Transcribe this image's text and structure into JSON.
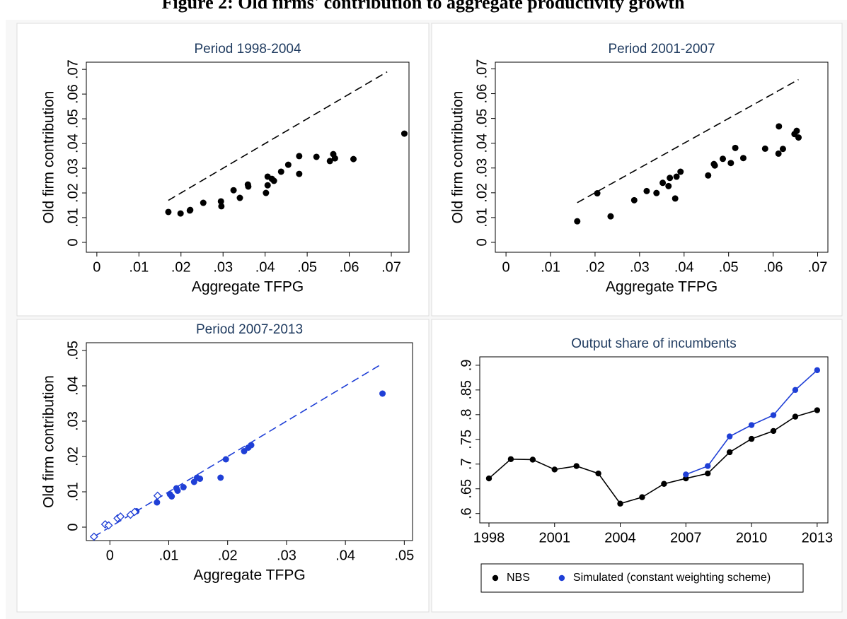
{
  "title": "Figure 2: Old firms' contribution to aggregate productivity growth",
  "chart_data": [
    {
      "type": "scatter",
      "title": "Period 1998-2004",
      "x_label": "Aggregate TFPG",
      "y_label": "Old firm contribution",
      "xlim": [
        -0.0025,
        0.0742
      ],
      "ylim": [
        -0.004,
        0.0729
      ],
      "xticks": [
        0,
        {
          "value": 0.01,
          "label": ".01"
        },
        {
          "value": 0.02,
          "label": ".02"
        },
        {
          "value": 0.03,
          "label": ".03"
        },
        {
          "value": 0.04,
          "label": ".04"
        },
        {
          "value": 0.05,
          "label": ".05"
        },
        {
          "value": 0.06,
          "label": ".06"
        },
        {
          "value": 0.07,
          "label": ".07"
        }
      ],
      "yticks": [
        0,
        {
          "value": 0.01,
          "label": ".01"
        },
        {
          "value": 0.02,
          "label": ".02"
        },
        {
          "value": 0.03,
          "label": ".03"
        },
        {
          "value": 0.04,
          "label": ".04"
        },
        {
          "value": 0.05,
          "label": ".05"
        },
        {
          "value": 0.06,
          "label": ".06"
        },
        {
          "value": 0.07,
          "label": ".07"
        }
      ],
      "reference_line": {
        "color": "#000000",
        "x": [
          0.017,
          0.069
        ],
        "values": [
          0.017,
          0.069
        ]
      },
      "series": [
        {
          "color": "#000000",
          "marker": "circle",
          "x": [
            0.017,
            0.0199,
            0.0221,
            0.0222,
            0.0253,
            0.0295,
            0.0296,
            0.0325,
            0.034,
            0.0359,
            0.036,
            0.0402,
            0.0406,
            0.0406,
            0.0416,
            0.0421,
            0.0438,
            0.0455,
            0.0481,
            0.0481,
            0.0522,
            0.0554,
            0.0562,
            0.0566,
            0.061,
            0.0731
          ],
          "values": [
            0.0123,
            0.0117,
            0.0129,
            0.0131,
            0.016,
            0.0166,
            0.0146,
            0.0211,
            0.018,
            0.0234,
            0.0226,
            0.02,
            0.0266,
            0.0231,
            0.0257,
            0.0249,
            0.0286,
            0.0314,
            0.0349,
            0.0277,
            0.0346,
            0.0329,
            0.0357,
            0.034,
            0.0337,
            0.044
          ]
        }
      ]
    },
    {
      "type": "scatter",
      "title": "Period 2001-2007",
      "x_label": "Aggregate TFPG",
      "y_label": "Old firm contribution",
      "xlim": [
        -0.0024,
        0.0723
      ],
      "ylim": [
        -0.004,
        0.0727
      ],
      "xticks": [
        0,
        {
          "value": 0.01,
          "label": ".01"
        },
        {
          "value": 0.02,
          "label": ".02"
        },
        {
          "value": 0.03,
          "label": ".03"
        },
        {
          "value": 0.04,
          "label": ".04"
        },
        {
          "value": 0.05,
          "label": ".05"
        },
        {
          "value": 0.06,
          "label": ".06"
        },
        {
          "value": 0.07,
          "label": ".07"
        }
      ],
      "yticks": [
        0,
        {
          "value": 0.01,
          "label": ".01"
        },
        {
          "value": 0.02,
          "label": ".02"
        },
        {
          "value": 0.03,
          "label": ".03"
        },
        {
          "value": 0.04,
          "label": ".04"
        },
        {
          "value": 0.05,
          "label": ".05"
        },
        {
          "value": 0.06,
          "label": ".06"
        },
        {
          "value": 0.07,
          "label": ".07"
        }
      ],
      "reference_line": {
        "color": "#000000",
        "x": [
          0.016,
          0.0657
        ],
        "values": [
          0.016,
          0.0657
        ]
      },
      "series": [
        {
          "color": "#000000",
          "marker": "circle",
          "x": [
            0.016,
            0.0205,
            0.0235,
            0.0288,
            0.0316,
            0.0338,
            0.0352,
            0.0365,
            0.0368,
            0.038,
            0.0383,
            0.0392,
            0.0454,
            0.0467,
            0.0469,
            0.0487,
            0.0505,
            0.0515,
            0.0533,
            0.0582,
            0.0612,
            0.0613,
            0.0622,
            0.0648,
            0.0653,
            0.0657
          ],
          "values": [
            0.0085,
            0.0198,
            0.0105,
            0.017,
            0.0207,
            0.0199,
            0.024,
            0.0227,
            0.026,
            0.0177,
            0.0265,
            0.0285,
            0.027,
            0.0316,
            0.031,
            0.0337,
            0.032,
            0.0381,
            0.034,
            0.0378,
            0.0358,
            0.0468,
            0.0377,
            0.0437,
            0.045,
            0.0423
          ]
        }
      ]
    },
    {
      "type": "scatter",
      "title": "Period 2007-2013",
      "x_label": "Aggregate TFPG",
      "y_label": "Old firm contribution",
      "xlim": [
        -0.004,
        0.0514
      ],
      "ylim": [
        -0.0038,
        0.0522
      ],
      "xticks": [
        0,
        {
          "value": 0.01,
          "label": ".01"
        },
        {
          "value": 0.02,
          "label": ".02"
        },
        {
          "value": 0.03,
          "label": ".03"
        },
        {
          "value": 0.04,
          "label": ".04"
        },
        {
          "value": 0.05,
          "label": ".05"
        }
      ],
      "yticks": [
        0,
        {
          "value": 0.01,
          "label": ".01"
        },
        {
          "value": 0.02,
          "label": ".02"
        },
        {
          "value": 0.03,
          "label": ".03"
        },
        {
          "value": 0.04,
          "label": ".04"
        },
        {
          "value": 0.05,
          "label": ".05"
        }
      ],
      "reference_line": {
        "color": "#1f3fd6",
        "x": [
          -0.0027,
          0.0463
        ],
        "values": [
          -0.0027,
          0.0463
        ]
      },
      "series": [
        {
          "color": "#1f3fd6",
          "marker": "circle",
          "x": [
            0.0045,
            0.008,
            0.0102,
            0.0105,
            0.0113,
            0.0115,
            0.0125,
            0.0143,
            0.0148,
            0.0153,
            0.0188,
            0.0197,
            0.0228,
            0.0235,
            0.024,
            0.0463
          ],
          "values": [
            0.0045,
            0.007,
            0.0093,
            0.0087,
            0.011,
            0.0103,
            0.0113,
            0.0128,
            0.014,
            0.0137,
            0.014,
            0.0192,
            0.0215,
            0.0225,
            0.0232,
            0.0378
          ]
        },
        {
          "color": "#1f3fd6",
          "marker": "hollow-diamond",
          "x": [
            -0.0027,
            -0.0008,
            -0.0002,
            0.0013,
            0.0018,
            0.0035,
            0.0042,
            0.0081
          ],
          "values": [
            -0.0027,
            0.0008,
            0.0005,
            0.0025,
            0.003,
            0.0035,
            0.0043,
            0.0089
          ]
        }
      ]
    },
    {
      "type": "line",
      "title": "Output share of incumbents",
      "xlim": [
        1997.58,
        2013.49
      ],
      "ylim": [
        0.581,
        0.917
      ],
      "xticks": [
        1998,
        2001,
        2004,
        2007,
        2010,
        2013
      ],
      "yticks": [
        {
          "value": 0.6,
          "label": ".6"
        },
        {
          "value": 0.65,
          "label": ".65"
        },
        {
          "value": 0.7,
          "label": ".7"
        },
        {
          "value": 0.75,
          "label": ".75"
        },
        {
          "value": 0.8,
          "label": ".8"
        },
        {
          "value": 0.85,
          "label": ".85"
        },
        {
          "value": 0.9,
          "label": ".9"
        }
      ],
      "x": [
        1998,
        1999,
        2000,
        2001,
        2002,
        2003,
        2004,
        2005,
        2006,
        2007,
        2008,
        2009,
        2010,
        2011,
        2012,
        2013
      ],
      "legend": "bottom",
      "series": [
        {
          "name": "NBS",
          "color": "#000000",
          "values": [
            0.671,
            0.71,
            0.709,
            0.689,
            0.696,
            0.681,
            0.62,
            0.633,
            0.66,
            0.671,
            0.681,
            0.724,
            0.751,
            0.767,
            0.796,
            0.809
          ]
        },
        {
          "name": "Simulated (constant weighting scheme)",
          "color": "#1f3fd6",
          "values": [
            null,
            null,
            null,
            null,
            null,
            null,
            null,
            null,
            null,
            0.679,
            0.696,
            0.756,
            0.779,
            0.799,
            0.85,
            0.89
          ]
        }
      ]
    }
  ]
}
